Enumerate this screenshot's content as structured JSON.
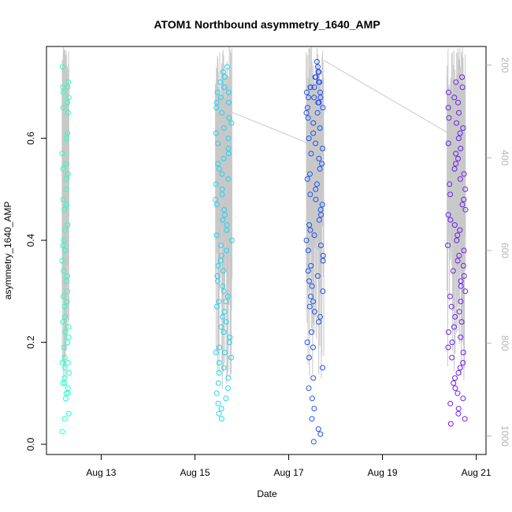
{
  "chart_data": {
    "type": "scatter",
    "title": "ATOM1 Northbound asymmetry_1640_AMP",
    "xlabel": "Date",
    "ylabel": "asymmetry_1640_AMP",
    "xlim": [
      "2023-08-11 20:00",
      "2023-08-21 05:00"
    ],
    "ylim": [
      -0.02,
      0.78
    ],
    "x_ticks": [
      "Aug 13",
      "Aug 15",
      "Aug 17",
      "Aug 19",
      "Aug 21"
    ],
    "y_ticks": [
      "0.0",
      "0.2",
      "0.4",
      "0.6"
    ],
    "y2_ticks": [
      "200",
      "400",
      "600",
      "800",
      "1000"
    ],
    "y2_range": [
      1040,
      160
    ],
    "y2_inverted": true,
    "grid": false,
    "legend": "none",
    "series": [
      {
        "color": "#21ffc8",
        "x_start": "2023-08-12 04:00",
        "x_end": "2023-08-12 07:30",
        "values": [
          0.74,
          0.71,
          0.7,
          0.7,
          0.69,
          0.68,
          0.67,
          0.66,
          0.65,
          0.61,
          0.6,
          0.57,
          0.55,
          0.54,
          0.53,
          0.52,
          0.5,
          0.48,
          0.47,
          0.46,
          0.43,
          0.42,
          0.4,
          0.39,
          0.38,
          0.36,
          0.34,
          0.33,
          0.32,
          0.3,
          0.29,
          0.28,
          0.27,
          0.25,
          0.24,
          0.23,
          0.22,
          0.21,
          0.2,
          0.19,
          0.17,
          0.16,
          0.16,
          0.15,
          0.14,
          0.13,
          0.12,
          0.12,
          0.11,
          0.1,
          0.1,
          0.09,
          0.06,
          0.05,
          0.025
        ]
      },
      {
        "color": "#1fd4f0",
        "x_start": "2023-08-15 10:30",
        "x_end": "2023-08-15 19:00",
        "values": [
          0.74,
          0.73,
          0.72,
          0.71,
          0.7,
          0.7,
          0.69,
          0.69,
          0.68,
          0.67,
          0.67,
          0.66,
          0.65,
          0.64,
          0.63,
          0.62,
          0.61,
          0.6,
          0.59,
          0.58,
          0.57,
          0.56,
          0.55,
          0.54,
          0.53,
          0.52,
          0.51,
          0.5,
          0.49,
          0.48,
          0.47,
          0.46,
          0.45,
          0.44,
          0.43,
          0.42,
          0.41,
          0.4,
          0.39,
          0.38,
          0.37,
          0.36,
          0.35,
          0.34,
          0.33,
          0.32,
          0.31,
          0.3,
          0.29,
          0.28,
          0.28,
          0.27,
          0.26,
          0.25,
          0.24,
          0.23,
          0.22,
          0.21,
          0.2,
          0.19,
          0.18,
          0.18,
          0.17,
          0.16,
          0.15,
          0.14,
          0.13,
          0.12,
          0.11,
          0.1,
          0.09,
          0.08,
          0.07,
          0.06,
          0.05
        ]
      },
      {
        "color": "#1f50f0",
        "x_start": "2023-08-17 09:00",
        "x_end": "2023-08-17 18:00",
        "values": [
          0.75,
          0.74,
          0.73,
          0.73,
          0.72,
          0.72,
          0.71,
          0.71,
          0.7,
          0.7,
          0.7,
          0.69,
          0.69,
          0.68,
          0.68,
          0.68,
          0.67,
          0.67,
          0.66,
          0.66,
          0.65,
          0.65,
          0.64,
          0.63,
          0.62,
          0.61,
          0.6,
          0.59,
          0.58,
          0.57,
          0.56,
          0.55,
          0.54,
          0.53,
          0.52,
          0.51,
          0.5,
          0.49,
          0.48,
          0.47,
          0.46,
          0.45,
          0.44,
          0.43,
          0.42,
          0.41,
          0.4,
          0.39,
          0.38,
          0.37,
          0.36,
          0.35,
          0.34,
          0.33,
          0.32,
          0.31,
          0.3,
          0.29,
          0.28,
          0.27,
          0.26,
          0.25,
          0.24,
          0.22,
          0.2,
          0.19,
          0.17,
          0.15,
          0.13,
          0.11,
          0.09,
          0.07,
          0.05,
          0.03,
          0.02,
          0.005
        ]
      },
      {
        "color": "#6a1ff0",
        "x_start": "2023-08-20 09:00",
        "x_end": "2023-08-20 18:30",
        "values": [
          0.72,
          0.71,
          0.7,
          0.69,
          0.68,
          0.67,
          0.66,
          0.65,
          0.64,
          0.63,
          0.62,
          0.61,
          0.6,
          0.59,
          0.58,
          0.57,
          0.56,
          0.55,
          0.54,
          0.53,
          0.52,
          0.51,
          0.5,
          0.49,
          0.48,
          0.47,
          0.46,
          0.45,
          0.44,
          0.43,
          0.42,
          0.41,
          0.4,
          0.39,
          0.38,
          0.37,
          0.36,
          0.35,
          0.34,
          0.33,
          0.32,
          0.31,
          0.3,
          0.29,
          0.28,
          0.27,
          0.26,
          0.25,
          0.24,
          0.23,
          0.22,
          0.21,
          0.2,
          0.19,
          0.18,
          0.17,
          0.16,
          0.15,
          0.14,
          0.13,
          0.12,
          0.11,
          0.1,
          0.09,
          0.08,
          0.07,
          0.06,
          0.05,
          0.04
        ]
      }
    ],
    "background_line": {
      "color": "#c8c8c8",
      "y2_range": [
        160,
        1040
      ],
      "connectors": [
        {
          "from": [
            "2023-08-15 19:00",
            302
          ],
          "to": [
            "2023-08-17 09:00",
            367
          ]
        },
        {
          "from": [
            "2023-08-17 18:00",
            190
          ],
          "to": [
            "2023-08-20 09:00",
            345
          ]
        }
      ]
    }
  }
}
